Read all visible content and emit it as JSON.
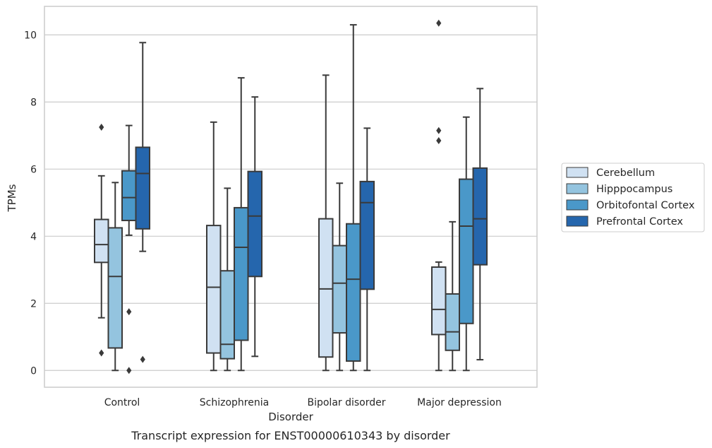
{
  "chart_data": {
    "type": "box",
    "title": "",
    "caption": "Transcript expression for ENST00000610343 by disorder",
    "xlabel": "Disorder",
    "ylabel": "TPMs",
    "ylim": [
      -0.5,
      10.85
    ],
    "yticks": [
      "0",
      "2",
      "4",
      "6",
      "8",
      "10"
    ],
    "grid": "horizontal",
    "legend_position": "right",
    "categories": [
      "Control",
      "Schizophrenia",
      "Bipolar disorder",
      "Major depression"
    ],
    "series": [
      {
        "name": "Cerebellum",
        "color": "#d0e1f2",
        "boxes": [
          {
            "whislo": 1.57,
            "q1": 3.22,
            "med": 3.75,
            "q3": 4.5,
            "whishi": 5.8,
            "fliers": [
              7.25,
              0.52
            ]
          },
          {
            "whislo": 0.0,
            "q1": 0.52,
            "med": 2.48,
            "q3": 4.32,
            "whishi": 7.4,
            "fliers": []
          },
          {
            "whislo": 0.0,
            "q1": 0.4,
            "med": 2.43,
            "q3": 4.52,
            "whishi": 8.8,
            "fliers": []
          },
          {
            "whislo": 0.0,
            "q1": 1.07,
            "med": 1.82,
            "q3": 3.08,
            "whishi": 3.23,
            "fliers": [
              10.35,
              7.15,
              6.85
            ]
          }
        ]
      },
      {
        "name": "Hipppocampus",
        "color": "#94c4df",
        "boxes": [
          {
            "whislo": 0.0,
            "q1": 0.67,
            "med": 2.8,
            "q3": 4.25,
            "whishi": 5.6,
            "fliers": []
          },
          {
            "whislo": 0.0,
            "q1": 0.35,
            "med": 0.78,
            "q3": 2.97,
            "whishi": 5.43,
            "fliers": []
          },
          {
            "whislo": 0.0,
            "q1": 1.12,
            "med": 2.6,
            "q3": 3.72,
            "whishi": 5.58,
            "fliers": []
          },
          {
            "whislo": 0.0,
            "q1": 0.6,
            "med": 1.15,
            "q3": 2.28,
            "whishi": 4.43,
            "fliers": []
          }
        ]
      },
      {
        "name": "Orbitofontal Cortex",
        "color": "#4a98c9",
        "boxes": [
          {
            "whislo": 4.03,
            "q1": 4.47,
            "med": 5.15,
            "q3": 5.95,
            "whishi": 7.3,
            "fliers": [
              1.75,
              0.0
            ]
          },
          {
            "whislo": 0.0,
            "q1": 0.9,
            "med": 3.67,
            "q3": 4.85,
            "whishi": 8.72,
            "fliers": []
          },
          {
            "whislo": 0.0,
            "q1": 0.28,
            "med": 2.72,
            "q3": 4.37,
            "whishi": 10.3,
            "fliers": []
          },
          {
            "whislo": 0.0,
            "q1": 1.4,
            "med": 4.3,
            "q3": 5.7,
            "whishi": 7.55,
            "fliers": []
          }
        ]
      },
      {
        "name": "Prefrontal Cortex",
        "color": "#2566ad",
        "boxes": [
          {
            "whislo": 3.55,
            "q1": 4.22,
            "med": 5.87,
            "q3": 6.65,
            "whishi": 9.77,
            "fliers": [
              0.33
            ]
          },
          {
            "whislo": 0.42,
            "q1": 2.8,
            "med": 4.6,
            "q3": 5.93,
            "whishi": 8.15,
            "fliers": []
          },
          {
            "whislo": 0.0,
            "q1": 2.42,
            "med": 5.0,
            "q3": 5.63,
            "whishi": 7.22,
            "fliers": []
          },
          {
            "whislo": 0.32,
            "q1": 3.15,
            "med": 4.52,
            "q3": 6.03,
            "whishi": 8.4,
            "fliers": []
          }
        ]
      }
    ],
    "line_color": "#3a3a3a",
    "grid_color": "#cccccc",
    "frame_color": "#cccccc"
  }
}
